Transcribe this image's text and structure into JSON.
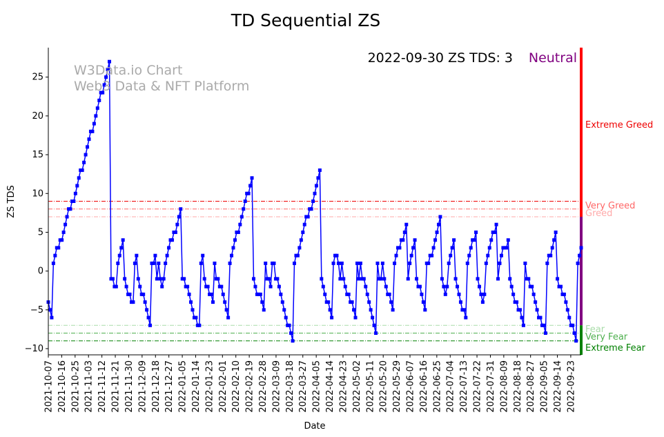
{
  "chart_data": {
    "type": "line",
    "title": "TD Sequential ZS",
    "xlabel": "Date",
    "ylabel": "ZS TDS",
    "ylim": [
      -10.8,
      28.8
    ],
    "y_ticks": [
      -10,
      -5,
      0,
      5,
      10,
      15,
      20,
      25
    ],
    "x_tick_labels": [
      "2021-10-07",
      "2021-10-16",
      "2021-10-25",
      "2021-11-03",
      "2021-11-12",
      "2021-11-21",
      "2021-11-30",
      "2021-12-09",
      "2021-12-18",
      "2021-12-27",
      "2022-01-05",
      "2022-01-14",
      "2022-01-23",
      "2022-02-01",
      "2022-02-10",
      "2022-02-19",
      "2022-02-28",
      "2022-03-09",
      "2022-03-18",
      "2022-03-27",
      "2022-04-05",
      "2022-04-14",
      "2022-04-23",
      "2022-05-02",
      "2022-05-11",
      "2022-05-20",
      "2022-05-29",
      "2022-06-07",
      "2022-06-16",
      "2022-06-25",
      "2022-07-04",
      "2022-07-13",
      "2022-07-22",
      "2022-07-31",
      "2022-08-09",
      "2022-08-18",
      "2022-08-27",
      "2022-09-05",
      "2022-09-14",
      "2022-09-23"
    ],
    "start_date": "2021-10-07",
    "end_date": "2022-09-30",
    "series_color": "#0000ff",
    "values": [
      -4,
      -5,
      -6,
      1,
      2,
      3,
      3,
      4,
      4,
      5,
      6,
      7,
      8,
      8,
      9,
      9,
      10,
      11,
      12,
      13,
      13,
      14,
      15,
      16,
      17,
      18,
      18,
      19,
      20,
      21,
      22,
      23,
      23,
      24,
      25,
      26,
      27,
      -1,
      -1,
      -2,
      -2,
      1,
      2,
      3,
      4,
      -1,
      -2,
      -3,
      -3,
      -4,
      -4,
      1,
      2,
      -1,
      -2,
      -3,
      -3,
      -4,
      -5,
      -6,
      -7,
      1,
      1,
      2,
      -1,
      1,
      -1,
      -2,
      -1,
      1,
      2,
      3,
      4,
      4,
      5,
      5,
      6,
      7,
      8,
      -1,
      -1,
      -2,
      -2,
      -3,
      -4,
      -5,
      -6,
      -6,
      -7,
      -7,
      1,
      2,
      -1,
      -2,
      -2,
      -3,
      -3,
      -4,
      1,
      -1,
      -1,
      -2,
      -2,
      -3,
      -4,
      -5,
      -6,
      1,
      2,
      3,
      4,
      5,
      5,
      6,
      7,
      8,
      9,
      10,
      10,
      11,
      12,
      -1,
      -2,
      -3,
      -3,
      -3,
      -4,
      -5,
      1,
      -1,
      -1,
      -2,
      1,
      1,
      -1,
      -1,
      -2,
      -3,
      -4,
      -5,
      -6,
      -7,
      -7,
      -8,
      -9,
      1,
      2,
      2,
      3,
      4,
      5,
      6,
      7,
      7,
      8,
      8,
      9,
      10,
      11,
      12,
      13,
      -1,
      -2,
      -3,
      -4,
      -4,
      -5,
      -6,
      1,
      2,
      2,
      1,
      -1,
      1,
      -1,
      -2,
      -3,
      -3,
      -4,
      -4,
      -5,
      -6,
      1,
      -1,
      1,
      -1,
      -1,
      -2,
      -3,
      -4,
      -5,
      -6,
      -7,
      -8,
      1,
      -1,
      -1,
      1,
      -1,
      -2,
      -3,
      -3,
      -4,
      -5,
      1,
      2,
      3,
      3,
      4,
      4,
      5,
      6,
      -1,
      1,
      2,
      3,
      4,
      -1,
      -2,
      -2,
      -3,
      -4,
      -5,
      1,
      1,
      2,
      2,
      3,
      4,
      5,
      6,
      7,
      -1,
      -2,
      -3,
      -2,
      1,
      2,
      3,
      4,
      -1,
      -2,
      -3,
      -4,
      -5,
      -5,
      -6,
      1,
      2,
      3,
      4,
      4,
      5,
      -1,
      -2,
      -3,
      -4,
      -3,
      1,
      2,
      3,
      4,
      5,
      5,
      6,
      -1,
      1,
      2,
      3,
      3,
      3,
      4,
      -1,
      -2,
      -3,
      -4,
      -4,
      -5,
      -5,
      -6,
      -7,
      1,
      -1,
      -1,
      -2,
      -2,
      -3,
      -4,
      -5,
      -6,
      -6,
      -7,
      -7,
      -8,
      1,
      2,
      2,
      3,
      4,
      5,
      -1,
      -2,
      -2,
      -3,
      -3,
      -4,
      -5,
      -6,
      -7,
      -7,
      -8,
      -9,
      1,
      2,
      3
    ],
    "thresholds": [
      {
        "name": "Extreme Greed",
        "value": 9,
        "color": "#ee0000"
      },
      {
        "name": "Very Greed",
        "value": 8,
        "color": "#ff6666"
      },
      {
        "name": "Greed",
        "value": 7,
        "color": "#ffaaaa"
      },
      {
        "name": "Fear",
        "value": -7,
        "color": "#a8dca8"
      },
      {
        "name": "Very Fear",
        "value": -8,
        "color": "#4daf4d"
      },
      {
        "name": "Extreme Fear",
        "value": -9,
        "color": "#008000"
      }
    ],
    "side_bar": [
      {
        "from": 7,
        "to": 28.8,
        "color": "#ff0000"
      },
      {
        "from": -7,
        "to": 7,
        "color": "#800080"
      },
      {
        "from": -10.8,
        "to": -7,
        "color": "#008000"
      }
    ],
    "status": {
      "date": "2022-09-30",
      "label": "ZS TDS: 3",
      "sentiment": "Neutral",
      "sentiment_color": "#800080"
    },
    "watermark": [
      "W3Data.io Chart",
      "Web3 Data & NFT Platform"
    ]
  }
}
